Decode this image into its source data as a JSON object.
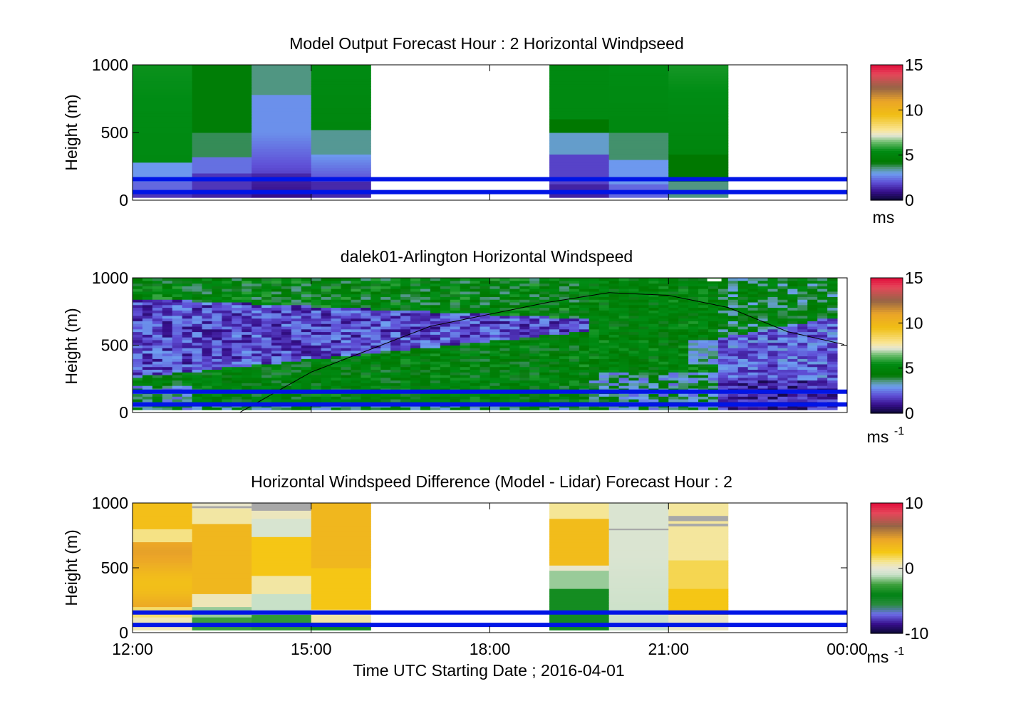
{
  "figure": {
    "xlabel": "Time UTC  Starting Date ; 2016-04-01",
    "x_ticks": [
      "12:00",
      "15:00",
      "18:00",
      "21:00",
      "00:00"
    ],
    "y_ticks": [
      "0",
      "500",
      "1000"
    ],
    "ylabel": "Height (m)"
  },
  "chart_data": [
    {
      "type": "heatmap",
      "title": "Model Output   Forecast Hour : 2 Horizontal Windpseed",
      "ylabel": "Height (m)",
      "xlim_hours": [
        12,
        24
      ],
      "ylim": [
        0,
        1000
      ],
      "colorbar": {
        "ticks": [
          "0",
          "5",
          "10",
          "15"
        ],
        "range": [
          0,
          15
        ],
        "unit": "ms"
      },
      "hourly_columns": [
        {
          "hour": "12:00",
          "low_level_ms": 2.5,
          "upper_ms": 5.3
        },
        {
          "hour": "13:00",
          "low_level_ms": 1.5,
          "upper_ms": 5.5
        },
        {
          "hour": "14:00",
          "low_level_ms": 1.0,
          "upper_ms": 3.5
        },
        {
          "hour": "15:00",
          "low_level_ms": 1.5,
          "upper_ms": 5.2
        },
        {
          "hour": "19:00",
          "low_level_ms": 1.5,
          "upper_ms": 5.3
        },
        {
          "hour": "20:00",
          "low_level_ms": 3.0,
          "upper_ms": 5.5
        },
        {
          "hour": "21:00",
          "low_level_ms": 4.0,
          "upper_ms": 5.6
        }
      ],
      "reference_lines_m": [
        60,
        155
      ]
    },
    {
      "type": "heatmap",
      "title": "dalek01-Arlington  Horizontal Windspeed",
      "ylabel": "Height (m)",
      "xlim_hours": [
        12,
        24
      ],
      "ylim": [
        0,
        1000
      ],
      "colorbar": {
        "ticks": [
          "0",
          "5",
          "10",
          "15"
        ],
        "range": [
          0,
          15
        ],
        "unit": "ms",
        "unit_exp": "-1"
      },
      "boundary_layer_curve": [
        {
          "hour": 13.8,
          "height_m": 0
        },
        {
          "hour": 15,
          "height_m": 300
        },
        {
          "hour": 17,
          "height_m": 640
        },
        {
          "hour": 19,
          "height_m": 820
        },
        {
          "hour": 20,
          "height_m": 890
        },
        {
          "hour": 21,
          "height_m": 870
        },
        {
          "hour": 22,
          "height_m": 780
        },
        {
          "hour": 23,
          "height_m": 600
        },
        {
          "hour": 24,
          "height_m": 500
        }
      ],
      "reference_lines_m": [
        60,
        155
      ]
    },
    {
      "type": "heatmap",
      "title": "Horizontal Windspeed Difference (Model - Lidar) Forecast Hour : 2",
      "ylabel": "Height (m)",
      "xlabel": "Time UTC  Starting Date ; 2016-04-01",
      "xlim_hours": [
        12,
        24
      ],
      "ylim": [
        0,
        1000
      ],
      "colorbar": {
        "ticks": [
          "-10",
          "0",
          "10"
        ],
        "range": [
          -10,
          10
        ],
        "unit": "ms",
        "unit_exp": "-1"
      },
      "hourly_columns": [
        {
          "hour": "12:00",
          "typical_diff_ms": 3.5
        },
        {
          "hour": "13:00",
          "typical_diff_ms": 3.5
        },
        {
          "hour": "14:00",
          "typical_diff_ms": 2.0
        },
        {
          "hour": "15:00",
          "typical_diff_ms": 3.5
        },
        {
          "hour": "19:00",
          "typical_diff_ms": -2.5
        },
        {
          "hour": "20:00",
          "typical_diff_ms": -0.5
        },
        {
          "hour": "21:00",
          "typical_diff_ms": 1.5
        }
      ],
      "reference_lines_m": [
        60,
        155
      ]
    }
  ]
}
